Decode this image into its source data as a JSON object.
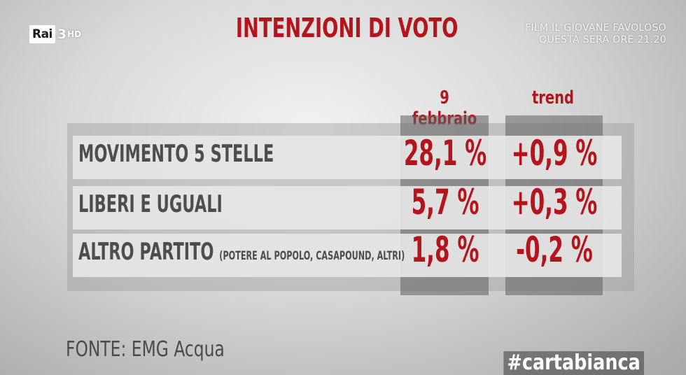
{
  "channel": {
    "logo_text": "Rai",
    "channel_number": "3",
    "hd": "HD"
  },
  "promo": {
    "line1": "FILM IL GIOVANE FAVOLOSO",
    "line2": "QUESTA SERA ORE 21.20"
  },
  "title": "INTENZIONI DI VOTO",
  "columns": {
    "date": "9 febbraio",
    "trend": "trend"
  },
  "rows": [
    {
      "party": "MOVIMENTO 5 STELLE",
      "sub": "",
      "value": "28,1 %",
      "trend": "+0,9 %"
    },
    {
      "party": "LIBERI E UGUALI",
      "sub": "",
      "value": "5,7 %",
      "trend": "+0,3 %"
    },
    {
      "party": "ALTRO PARTITO",
      "sub": "(POTERE AL POPOLO, CASAPOUND, ALTRI)",
      "value": "1,8 %",
      "trend": "-0,2 %"
    }
  ],
  "source": "FONTE: EMG Acqua",
  "hashtag": "#cartabianca",
  "colors": {
    "accent": "#b4151d",
    "text": "#4d4d4d"
  }
}
